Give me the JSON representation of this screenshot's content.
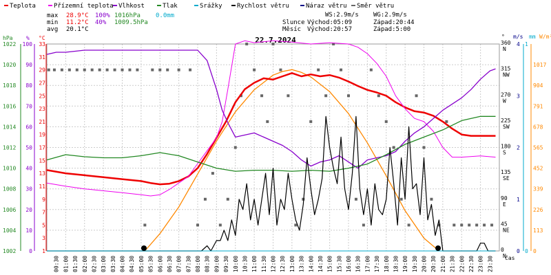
{
  "legend": [
    {
      "label": "Teplota",
      "color": "#ee0000"
    },
    {
      "label": "Přízemní teplota",
      "color": "#ee00ee"
    },
    {
      "label": "Vlhkost",
      "color": "#8800cc"
    },
    {
      "label": "Tlak",
      "color": "#228822"
    },
    {
      "label": "Srážky",
      "color": "#00aacc"
    },
    {
      "label": "Rychlost větru",
      "color": "#000000"
    },
    {
      "label": "Náraz větru",
      "color": "#000088"
    },
    {
      "label": "Směr větru",
      "color": "#666666"
    }
  ],
  "stats": {
    "max_label": "max",
    "max_temp": "28.9°C",
    "max_hum": "100%",
    "max_press": "1016hPa",
    "max_rain": "0.0mm",
    "min_label": "min",
    "min_temp": "11.2°C",
    "min_hum": "40%",
    "min_press": "1009.5hPa",
    "avg_label": "avg",
    "avg_temp": "20.1°C",
    "ws": "WS:2.9m/s",
    "wg": "WG:2.9m/s",
    "sun_label": "Slunce",
    "sun_rise": "Východ:05:09",
    "sun_set": "Západ:20:44",
    "moon_label": "Měsíc",
    "moon_rise": "Východ:20:57",
    "moon_set": "Západ:5:00"
  },
  "axes_units": {
    "hpa": "hPa",
    "pct": "%",
    "deg": "°C",
    "dir": "°",
    "ms": "m/s",
    "mm": "mm",
    "wm2": "W/m²",
    "time": "čas"
  },
  "colors": {
    "temp": "#ee0000",
    "ground": "#ee00ee",
    "hum": "#8800cc",
    "press": "#228822",
    "rain": "#00aacc",
    "wind": "#000000",
    "gust": "#000088",
    "dir": "#666666",
    "solar": "#ff8800",
    "grid": "#cccccc"
  },
  "chart_data": {
    "type": "line",
    "title": "22.7.2024",
    "time_range_h": [
      0,
      24
    ],
    "x_ticks": [
      "00:30",
      "01:00",
      "01:30",
      "02:00",
      "02:30",
      "03:00",
      "03:30",
      "04:00",
      "04:30",
      "05:00",
      "05:30",
      "06:00",
      "06:30",
      "07:00",
      "07:30",
      "08:00",
      "08:30",
      "09:00",
      "09:30",
      "10:00",
      "10:30",
      "11:00",
      "11:30",
      "12:00",
      "12:30",
      "13:00",
      "13:30",
      "14:00",
      "14:30",
      "15:00",
      "15:30",
      "16:00",
      "16:30",
      "17:00",
      "17:30",
      "18:00",
      "18:30",
      "19:00",
      "19:30",
      "20:00",
      "20:30",
      "21:00",
      "21:30",
      "22:00",
      "22:30",
      "23:00",
      "23:30"
    ],
    "pressure_axis": {
      "label": "hPa",
      "ticks": [
        "1002",
        "1004",
        "1006",
        "1008",
        "1010",
        "1012",
        "1014",
        "1016",
        "1018",
        "1020",
        "1022"
      ],
      "range": [
        1002,
        1022
      ]
    },
    "humidity_axis": {
      "label": "%",
      "ticks": [
        "0",
        "10",
        "20",
        "30",
        "40",
        "50",
        "60",
        "70",
        "80",
        "90",
        "100"
      ],
      "range": [
        0,
        100
      ]
    },
    "temp_axis": {
      "label": "°C",
      "ticks": [
        "1",
        "3",
        "5",
        "7",
        "9",
        "11",
        "13",
        "15",
        "17",
        "19",
        "21",
        "23",
        "25",
        "27",
        "29",
        "31",
        "33"
      ],
      "range": [
        1,
        33
      ]
    },
    "direction_axis": {
      "label": "°",
      "ticks": [
        {
          "v": "0",
          "d": "N"
        },
        {
          "v": "45",
          "d": "NE"
        },
        {
          "v": "90",
          "d": "E"
        },
        {
          "v": "135",
          "d": "SE"
        },
        {
          "v": "180",
          "d": "S"
        },
        {
          "v": "225",
          "d": "SW"
        },
        {
          "v": "270",
          "d": "W"
        },
        {
          "v": "315",
          "d": "NW"
        },
        {
          "v": "360",
          "d": "N"
        }
      ],
      "range": [
        0,
        360
      ]
    },
    "wind_axis": {
      "label": "m/s",
      "ticks": [
        "0",
        "1",
        "2",
        "3",
        "4"
      ],
      "range": [
        0,
        4
      ]
    },
    "rain_axis": {
      "label": "mm",
      "ticks": [
        "0",
        "1"
      ],
      "range": [
        0,
        1
      ]
    },
    "solar_axis": {
      "label": "W/m²",
      "ticks": [
        "0",
        "113",
        "226",
        "339",
        "452",
        "565",
        "678",
        "791",
        "904",
        "1017"
      ],
      "range": [
        0,
        1130
      ]
    },
    "series": [
      {
        "name": "Teplota",
        "axis": "temp",
        "x": [
          0,
          1,
          2,
          3,
          4,
          5,
          5.5,
          6,
          6.5,
          7,
          7.5,
          8,
          8.5,
          9,
          9.5,
          10,
          10.5,
          11,
          11.5,
          12,
          12.5,
          13,
          13.5,
          14,
          14.5,
          15,
          15.5,
          16,
          16.5,
          17,
          17.5,
          18,
          18.5,
          19,
          19.5,
          20,
          20.5,
          21,
          21.5,
          22,
          22.5,
          23,
          23.8
        ],
        "y": [
          13.5,
          13.0,
          12.7,
          12.4,
          12.1,
          11.8,
          11.5,
          11.3,
          11.4,
          11.8,
          12.5,
          13.8,
          16.0,
          18.5,
          21.0,
          24.0,
          26.0,
          27.0,
          27.7,
          27.5,
          28.0,
          28.5,
          28.0,
          28.3,
          28.0,
          28.2,
          27.8,
          27.2,
          26.5,
          25.9,
          25.5,
          25.0,
          24.0,
          23.2,
          22.6,
          22.4,
          21.9,
          21.0,
          19.9,
          19.0,
          18.8,
          18.8,
          18.8
        ]
      },
      {
        "name": "Přízemní teplota",
        "axis": "temp",
        "x": [
          0,
          1,
          2,
          3,
          4,
          5,
          5.5,
          6,
          6.5,
          7,
          7.5,
          8,
          8.5,
          9,
          9.3,
          9.6,
          10,
          10.5,
          11,
          12,
          13,
          14,
          15,
          16,
          16.5,
          17,
          17.5,
          18,
          18.5,
          19,
          19.5,
          20,
          20.5,
          21,
          21.5,
          22,
          23,
          23.8
        ],
        "y": [
          11.5,
          11.0,
          10.6,
          10.3,
          10.0,
          9.7,
          9.5,
          9.7,
          10.5,
          11.5,
          12.5,
          14.5,
          16.5,
          18.5,
          21.0,
          26.0,
          33.0,
          33.5,
          33.2,
          33.5,
          33.3,
          33.0,
          33.2,
          33.0,
          32.5,
          31.5,
          30.0,
          28.0,
          25.0,
          23.0,
          21.5,
          21.0,
          19.5,
          17.0,
          15.5,
          15.5,
          15.7,
          15.5
        ]
      },
      {
        "name": "Vlhkost",
        "axis": "hum",
        "x": [
          0,
          0.5,
          1,
          2,
          3,
          4,
          5,
          6,
          7,
          8,
          8.5,
          9,
          9.3,
          9.6,
          10,
          10.5,
          11,
          11.5,
          12,
          12.5,
          13,
          13.5,
          14,
          14.5,
          15,
          15.5,
          16,
          16.5,
          17,
          17.5,
          18,
          18.5,
          19,
          19.5,
          20,
          20.5,
          21,
          21.5,
          22,
          22.5,
          23,
          23.5,
          23.8
        ],
        "y": [
          95,
          96,
          96,
          97,
          97,
          97,
          97,
          97,
          97,
          97,
          92,
          78,
          68,
          62,
          55,
          56,
          57,
          55,
          53,
          51,
          48,
          44,
          41,
          43,
          44,
          46,
          43,
          40,
          44,
          45,
          46,
          48,
          53,
          57,
          60,
          64,
          68,
          71,
          74,
          78,
          83,
          87,
          88
        ]
      },
      {
        "name": "Tlak",
        "axis": "press",
        "x": [
          0,
          1,
          2,
          3,
          4,
          5,
          6,
          7,
          8,
          9,
          10,
          11,
          12,
          13,
          14,
          15,
          16,
          17,
          18,
          19,
          20,
          21,
          22,
          23,
          23.8
        ],
        "y": [
          1010.8,
          1011.3,
          1011.1,
          1011.0,
          1011.0,
          1011.2,
          1011.5,
          1011.2,
          1010.6,
          1010.0,
          1009.7,
          1009.8,
          1009.8,
          1009.7,
          1009.8,
          1009.7,
          1010.0,
          1010.4,
          1011.3,
          1012.3,
          1013.0,
          1013.7,
          1014.6,
          1015.0,
          1015.0
        ]
      },
      {
        "name": "Rychlost větru",
        "axis": "wind",
        "x": [
          0,
          7.5,
          8,
          8.2,
          8.5,
          8.7,
          9,
          9.2,
          9.4,
          9.6,
          9.8,
          10,
          10.2,
          10.4,
          10.6,
          10.8,
          11,
          11.2,
          11.4,
          11.6,
          11.8,
          12,
          12.2,
          12.4,
          12.6,
          12.8,
          13,
          13.2,
          13.4,
          13.6,
          13.8,
          14,
          14.2,
          14.4,
          14.6,
          14.8,
          15,
          15.2,
          15.4,
          15.6,
          15.8,
          16,
          16.2,
          16.4,
          16.6,
          16.8,
          17,
          17.2,
          17.4,
          17.6,
          17.8,
          18,
          18.2,
          18.4,
          18.6,
          18.8,
          19,
          19.2,
          19.4,
          19.6,
          19.8,
          20,
          20.2,
          20.4,
          20.6,
          20.8,
          21,
          22.8,
          23,
          23.2,
          23.4,
          23.8
        ],
        "y": [
          0,
          0,
          0,
          0,
          0.1,
          0,
          0.2,
          0.2,
          0.4,
          0.2,
          0.6,
          0.3,
          1.0,
          0.8,
          1.3,
          0.6,
          1.0,
          0.5,
          1.0,
          1.5,
          0.7,
          1.6,
          0.5,
          1.0,
          0.8,
          1.5,
          1.0,
          0.6,
          0.4,
          0.9,
          1.8,
          1.2,
          0.7,
          1.0,
          1.4,
          2.6,
          2.0,
          1.6,
          1.3,
          2.2,
          1.2,
          0.8,
          1.5,
          2.6,
          1.2,
          0.7,
          1.2,
          0.5,
          1.3,
          0.8,
          0.7,
          1.0,
          2.0,
          1.3,
          0.5,
          1.8,
          1.0,
          2.4,
          1.2,
          1.3,
          0.7,
          1.8,
          0.6,
          0.9,
          0.3,
          0.6,
          0,
          0,
          0.15,
          0.15,
          0,
          0
        ]
      },
      {
        "name": "Srážky",
        "axis": "rain",
        "x": [
          0,
          23.8
        ],
        "y": [
          0,
          0
        ]
      }
    ],
    "solar": {
      "name": "solar",
      "axis": "solar",
      "x": [
        5.2,
        6,
        7,
        8,
        9,
        10,
        11,
        12,
        12.5,
        13,
        13.5,
        14,
        15,
        16,
        17,
        18,
        19,
        20,
        20.8
      ],
      "y": [
        0,
        95,
        240,
        420,
        600,
        760,
        880,
        960,
        980,
        990,
        975,
        950,
        870,
        750,
        590,
        410,
        220,
        70,
        0
      ]
    },
    "wind_direction": {
      "x": [
        0.1,
        0.4,
        0.8,
        1.2,
        1.6,
        2.0,
        2.4,
        2.8,
        3.2,
        3.6,
        4.0,
        4.4,
        4.8,
        5.2,
        5.6,
        6.0,
        6.4,
        7.0,
        7.6,
        8.0,
        8.4,
        8.8,
        9.2,
        9.6,
        10.0,
        10.3,
        10.6,
        11.0,
        11.4,
        11.7,
        12.0,
        12.4,
        12.8,
        13.2,
        13.6,
        14.0,
        14.4,
        14.8,
        15.2,
        15.6,
        16.0,
        16.4,
        16.8,
        17.2,
        17.6,
        18.0,
        18.4,
        18.8,
        19.2,
        19.6,
        20.0,
        20.4,
        20.8,
        21.2,
        21.6,
        22.0,
        22.4,
        22.8,
        23.2,
        23.6
      ],
      "y": [
        315,
        315,
        315,
        315,
        315,
        315,
        315,
        315,
        315,
        315,
        315,
        315,
        315,
        45,
        315,
        315,
        315,
        315,
        315,
        45,
        90,
        135,
        45,
        90,
        180,
        270,
        360,
        315,
        270,
        225,
        360,
        315,
        270,
        45,
        90,
        225,
        315,
        270,
        360,
        315,
        270,
        90,
        45,
        315,
        270,
        225,
        180,
        90,
        45,
        270,
        180,
        90,
        45,
        225,
        45,
        45,
        45,
        45,
        45,
        45
      ]
    }
  }
}
